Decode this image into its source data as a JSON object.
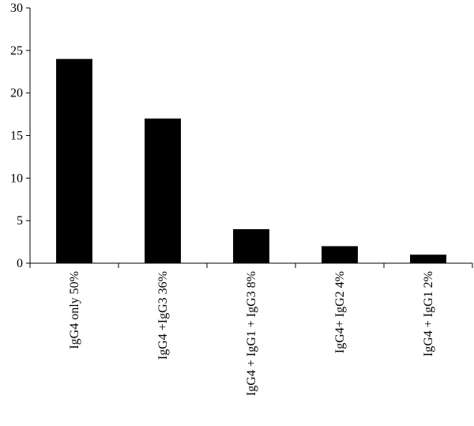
{
  "chart_data": {
    "type": "bar",
    "categories": [
      "IgG4 only 50%",
      "IgG4 +IgG3 36%",
      "IgG4 + IgG1 + IgG3 8%",
      "IgG4+ IgG2 4%",
      "IgG4 + IgG1 2%"
    ],
    "values": [
      24,
      17,
      4,
      2,
      1
    ],
    "yticks": [
      "0",
      "5",
      "10",
      "15",
      "20",
      "25",
      "30"
    ],
    "ylim": [
      0,
      30
    ],
    "title": "",
    "xlabel": "",
    "ylabel": "",
    "grid": false,
    "bar_color": "#000000"
  }
}
